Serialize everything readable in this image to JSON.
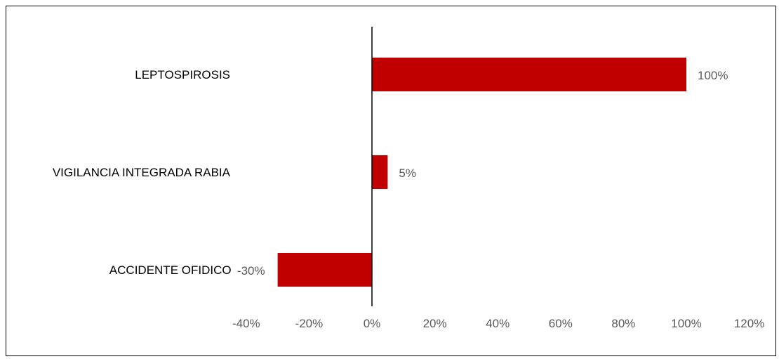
{
  "chart_data": {
    "type": "bar",
    "orientation": "horizontal",
    "categories": [
      "LEPTOSPIROSIS",
      "VIGILANCIA INTEGRADA RABIA",
      "ACCIDENTE OFIDICO"
    ],
    "values": [
      1.0,
      0.05,
      -0.3
    ],
    "data_labels": [
      "100%",
      "5%",
      "-30%"
    ],
    "xlim": [
      -0.4,
      1.2
    ],
    "x_ticks": [
      -0.4,
      -0.2,
      0,
      0.2,
      0.4,
      0.6,
      0.8,
      1.0,
      1.2
    ],
    "x_tick_labels": [
      "-40%",
      "-20%",
      "0%",
      "20%",
      "40%",
      "60%",
      "80%",
      "100%",
      "120%"
    ],
    "bar_color": "#C00000",
    "grid": false,
    "legend": "none"
  }
}
